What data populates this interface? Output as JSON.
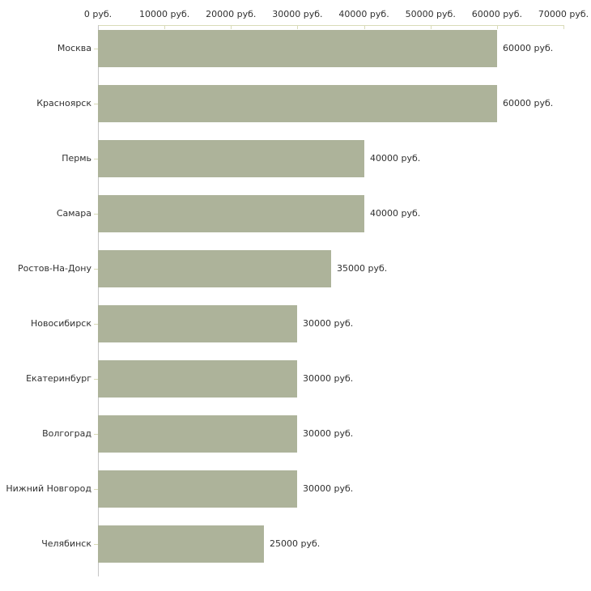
{
  "chart_data": {
    "type": "bar",
    "orientation": "horizontal",
    "title": "",
    "xlabel": "",
    "ylabel": "",
    "unit": "руб.",
    "categories": [
      "Москва",
      "Красноярск",
      "Пермь",
      "Самара",
      "Ростов-На-Дону",
      "Новосибирск",
      "Екатеринбург",
      "Волгоград",
      "Нижний Новгород",
      "Челябинск"
    ],
    "values": [
      60000,
      60000,
      40000,
      40000,
      35000,
      30000,
      30000,
      30000,
      30000,
      25000
    ],
    "value_labels": [
      "60000 руб.",
      "60000 руб.",
      "40000 руб.",
      "40000 руб.",
      "35000 руб.",
      "30000 руб.",
      "30000 руб.",
      "30000 руб.",
      "30000 руб.",
      "25000 руб."
    ],
    "x_ticks": [
      {
        "value": 0,
        "label": "0 руб."
      },
      {
        "value": 10000,
        "label": "10000 руб."
      },
      {
        "value": 20000,
        "label": "20000 руб."
      },
      {
        "value": 30000,
        "label": "30000 руб."
      },
      {
        "value": 40000,
        "label": "40000 руб."
      },
      {
        "value": 50000,
        "label": "50000 руб."
      },
      {
        "value": 60000,
        "label": "60000 руб."
      },
      {
        "value": 70000,
        "label": "70000 руб."
      }
    ],
    "xlim": [
      0,
      70000
    ],
    "grid": false,
    "legend": false,
    "colors": {
      "bar": "#adb39a",
      "x_axis_line": "#d9dbb8",
      "y_axis_line": "#c6c6c6",
      "text": "#303030",
      "background": "#ffffff"
    }
  }
}
